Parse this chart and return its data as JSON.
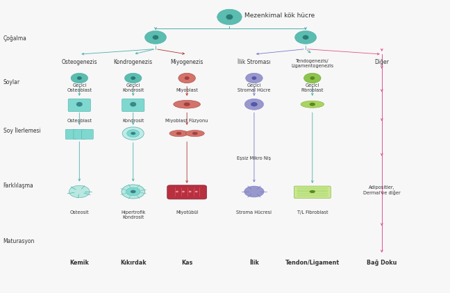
{
  "bg_color": "#f7f7f7",
  "teal": "#4aada8",
  "teal_body": "#5bbcb0",
  "teal_light": "#a8ddd8",
  "teal_sq": "#7ed8d0",
  "pink": "#e0508a",
  "dark_red": "#b03030",
  "blue_purple": "#7878c8",
  "blue_purple_body": "#9898cc",
  "green_body": "#8dc44e",
  "green_light": "#aad460",
  "rose": "#d4736a",
  "rose_dark": "#a04040",
  "title": "Mezenkimal kök hücre",
  "col_labels": [
    "Osteogenezis",
    "Kondrogenezis",
    "Miyogenezis",
    "İlik Stroması",
    "Tendogenezis/\nLigamentogenezis",
    "Diğer"
  ],
  "bottom_labels": [
    "Kemik",
    "Kıkırdak",
    "Kas",
    "İlik",
    "Tendon/Ligament",
    "Bağ Doku"
  ],
  "row_labels": [
    [
      "Çoğalma",
      0.87
    ],
    [
      "Soylar",
      0.72
    ],
    [
      "Soy İlerlemesi",
      0.555
    ],
    [
      "Farklılaşma",
      0.365
    ],
    [
      "Maturasyon",
      0.175
    ]
  ],
  "essis_label": "Eşsiz Mikro Niş"
}
